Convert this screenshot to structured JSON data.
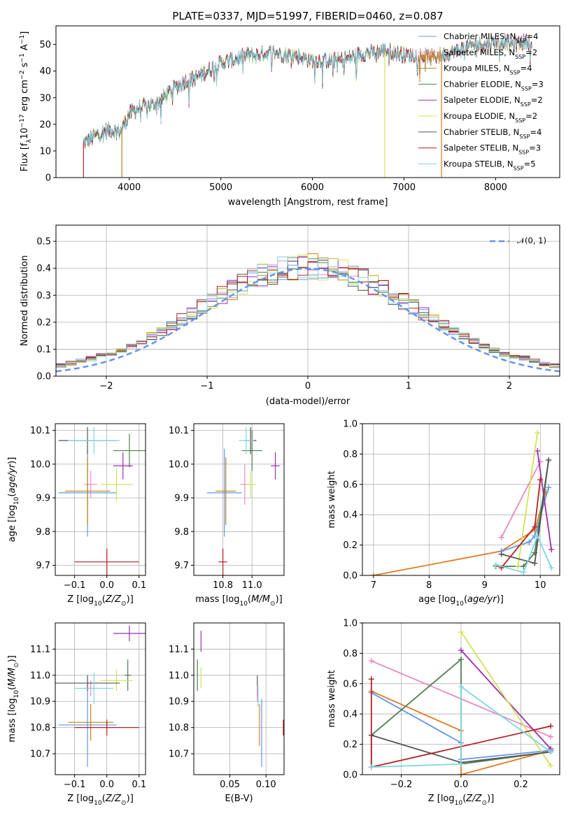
{
  "colors": {
    "Chabrier MILES": "#6495ed",
    "Salpeter MILES": "#e78ac3",
    "Kroupa MILES": "#b8860b",
    "Chabrier ELODIE": "#4f7f4f",
    "Salpeter ELODIE": "#9b2fae",
    "Kroupa ELODIE": "#d4e157",
    "Chabrier STELIB": "#555555",
    "Salpeter STELIB": "#b22222",
    "Kroupa STELIB": "#7fd6e0",
    "extra": "#e07b20",
    "normal_curve": "#6495ed"
  },
  "chart_data": [
    {
      "type": "line",
      "title": "PLATE=0337, MJD=51997, FIBERID=0460, z=0.087",
      "xlabel": "wavelength [Angstrom, rest frame]",
      "ylabel": "Flux [fλ10⁻¹⁷ erg cm⁻² s⁻¹ A⁻¹]",
      "xlim": [
        3200,
        8700
      ],
      "ylim": [
        0,
        57
      ],
      "xticks": [
        "4000",
        "5000",
        "6000",
        "7000",
        "8000"
      ],
      "yticks": [
        "0",
        "10",
        "20",
        "30",
        "40",
        "50"
      ],
      "legend": [
        "Chabrier MILES, N_SSP=4",
        "Salpeter MILES, N_SSP=2",
        "Kroupa MILES, N_SSP=4",
        "Chabrier ELODIE, N_SSP=3",
        "Salpeter ELODIE, N_SSP=2",
        "Kroupa ELODIE, N_SSP=2",
        "Chabrier STELIB, N_SSP=4",
        "Salpeter STELIB, N_SSP=3",
        "Kroupa STELIB, N_SSP=5"
      ],
      "spectrum_anchors": {
        "x": [
          3500,
          3600,
          3700,
          3800,
          3900,
          4000,
          4100,
          4200,
          4300,
          4400,
          4500,
          4600,
          4700,
          4800,
          4900,
          5000,
          5100,
          5200,
          5300,
          5400,
          5500,
          5600,
          5700,
          5800,
          5900,
          6000,
          6100,
          6200,
          6300,
          6400,
          6500,
          6600,
          6700,
          6800,
          6900,
          7000,
          7100,
          7200,
          7300,
          7400,
          7500,
          7600,
          7700,
          7800,
          7900,
          8000,
          8100,
          8200,
          8300,
          8400
        ],
        "y": [
          13,
          15,
          17,
          18,
          17,
          24,
          26,
          27,
          28,
          31,
          34,
          36,
          37,
          39,
          41,
          43,
          44,
          45,
          46,
          46,
          47,
          47,
          46,
          46,
          45,
          44,
          44,
          44,
          44,
          45,
          46,
          47,
          47,
          48,
          47,
          46,
          46,
          46,
          45,
          46,
          47,
          48,
          49,
          50,
          50,
          51,
          51,
          50,
          51,
          51
        ]
      },
      "drop_lines": [
        {
          "x": 3500,
          "model": "Salpeter STELIB"
        },
        {
          "x": 3920,
          "model": "Kroupa MILES"
        },
        {
          "x": 6790,
          "model": "Kroupa ELODIE"
        },
        {
          "x": 7410,
          "model": "extra"
        }
      ]
    },
    {
      "type": "area",
      "xlabel": "(data-model)/error",
      "ylabel": "Normed distribution",
      "xlim": [
        -2.5,
        2.5
      ],
      "ylim": [
        0,
        0.56
      ],
      "xticks": [
        "−2",
        "−1",
        "0",
        "1",
        "2"
      ],
      "yticks": [
        "0.0",
        "0.1",
        "0.2",
        "0.3",
        "0.4",
        "0.5"
      ],
      "legend": [
        "𝒩(0, 1)"
      ],
      "bin_width": 0.1,
      "bin_start": -2.5,
      "series_bins": 50
    },
    {
      "type": "scatter",
      "xlabel": "Z [log10(Z/Z⊙)]",
      "ylabel": "age  [log10(age/yr)]",
      "xlim": [
        -0.16,
        0.12
      ],
      "ylim": [
        9.67,
        10.12
      ],
      "xticks": [
        "−0.1",
        "0.0",
        "0.1"
      ],
      "yticks": [
        "9.7",
        "9.8",
        "9.9",
        "10.0",
        "10.1"
      ],
      "points": [
        {
          "model": "Chabrier MILES",
          "x": -0.06,
          "y": 9.915,
          "xerr": 0.09,
          "yerr": 0.13
        },
        {
          "model": "Salpeter MILES",
          "x": -0.05,
          "y": 9.94,
          "xerr": 0.02,
          "yerr": 0.04
        },
        {
          "model": "Kroupa MILES",
          "x": -0.06,
          "y": 9.92,
          "xerr": 0.07,
          "yerr": 0.1
        },
        {
          "model": "Chabrier ELODIE",
          "x": 0.07,
          "y": 10.04,
          "xerr": 0.05,
          "yerr": 0.05
        },
        {
          "model": "Salpeter ELODIE",
          "x": 0.05,
          "y": 9.995,
          "xerr": 0.03,
          "yerr": 0.04
        },
        {
          "model": "Kroupa ELODIE",
          "x": 0.03,
          "y": 9.94,
          "xerr": 0.05,
          "yerr": 0.05
        },
        {
          "model": "Chabrier STELIB",
          "x": -0.06,
          "y": 10.07,
          "xerr": 0.09,
          "yerr": 0.04
        },
        {
          "model": "Salpeter STELIB",
          "x": 0.0,
          "y": 9.71,
          "xerr": 0.1,
          "yerr": 0.04
        },
        {
          "model": "Kroupa STELIB",
          "x": -0.04,
          "y": 10.07,
          "xerr": 0.08,
          "yerr": 0.04
        }
      ]
    },
    {
      "type": "scatter",
      "xlabel": "mass [log10(M/M⊙)]",
      "ylabel": "",
      "xlim": [
        10.6,
        11.22
      ],
      "ylim": [
        9.67,
        10.12
      ],
      "xticks": [
        "10.8",
        "11.0"
      ],
      "yticks": [
        "9.7",
        "9.8",
        "9.9",
        "10.0",
        "10.1"
      ],
      "points": [
        {
          "model": "Chabrier MILES",
          "x": 10.81,
          "y": 9.915,
          "xerr": 0.12,
          "yerr": 0.13
        },
        {
          "model": "Salpeter MILES",
          "x": 10.95,
          "y": 9.94,
          "xerr": 0.03,
          "yerr": 0.06
        },
        {
          "model": "Kroupa MILES",
          "x": 10.82,
          "y": 9.92,
          "xerr": 0.07,
          "yerr": 0.1
        },
        {
          "model": "Chabrier ELODIE",
          "x": 11.0,
          "y": 10.04,
          "xerr": 0.07,
          "yerr": 0.06
        },
        {
          "model": "Salpeter ELODIE",
          "x": 11.16,
          "y": 9.995,
          "xerr": 0.03,
          "yerr": 0.04
        },
        {
          "model": "Kroupa ELODIE",
          "x": 10.99,
          "y": 9.94,
          "xerr": 0.04,
          "yerr": 0.04
        },
        {
          "model": "Chabrier STELIB",
          "x": 10.99,
          "y": 10.07,
          "xerr": 0.04,
          "yerr": 0.04
        },
        {
          "model": "Salpeter STELIB",
          "x": 10.8,
          "y": 9.71,
          "xerr": 0.03,
          "yerr": 0.04
        },
        {
          "model": "Kroupa STELIB",
          "x": 10.96,
          "y": 10.07,
          "xerr": 0.05,
          "yerr": 0.04
        }
      ]
    },
    {
      "type": "line",
      "xlabel": "age  [log10(age/yr)]",
      "ylabel": "mass weight",
      "xlim": [
        6.8,
        10.35
      ],
      "ylim": [
        0,
        1
      ],
      "xticks": [
        "7",
        "8",
        "9",
        "10"
      ],
      "yticks": [
        "0.0",
        "0.2",
        "0.4",
        "0.6",
        "0.8",
        "1.0"
      ],
      "series": [
        {
          "model": "extra",
          "x": [
            7.0,
            9.3,
            9.9,
            10.1
          ],
          "y": [
            0.0,
            0.16,
            0.3,
            0.55
          ]
        },
        {
          "model": "Chabrier MILES",
          "x": [
            9.3,
            9.8,
            9.9,
            10.15
          ],
          "y": [
            0.16,
            0.22,
            0.26,
            0.58
          ]
        },
        {
          "model": "Salpeter MILES",
          "x": [
            9.3,
            10.0
          ],
          "y": [
            0.25,
            0.75
          ]
        },
        {
          "model": "Chabrier ELODIE",
          "x": [
            9.2,
            9.7,
            9.9,
            10.15
          ],
          "y": [
            0.06,
            0.06,
            0.15,
            0.76
          ]
        },
        {
          "model": "Salpeter ELODIE",
          "x": [
            9.95,
            10.2
          ],
          "y": [
            0.82,
            0.17
          ]
        },
        {
          "model": "Kroupa ELODIE",
          "x": [
            9.6,
            9.95
          ],
          "y": [
            0.06,
            0.94
          ]
        },
        {
          "model": "Chabrier STELIB",
          "x": [
            9.3,
            9.9,
            10.15
          ],
          "y": [
            0.14,
            0.08,
            0.76
          ]
        },
        {
          "model": "Salpeter STELIB",
          "x": [
            9.3,
            9.9,
            10.0
          ],
          "y": [
            0.05,
            0.32,
            0.63
          ]
        },
        {
          "model": "Kroupa STELIB",
          "x": [
            9.2,
            9.7,
            9.95,
            10.2
          ],
          "y": [
            0.07,
            0.02,
            0.26,
            0.05
          ]
        }
      ]
    },
    {
      "type": "scatter",
      "xlabel": "Z [log10(Z/Z⊙)]",
      "ylabel": "mass [log10(M/M⊙)]",
      "xlim": [
        -0.16,
        0.12
      ],
      "ylim": [
        10.62,
        11.2
      ],
      "xticks": [
        "−0.1",
        "0.0",
        "0.1"
      ],
      "yticks": [
        "10.7",
        "10.8",
        "10.9",
        "11.0",
        "11.1"
      ],
      "points": [
        {
          "model": "Chabrier MILES",
          "x": -0.06,
          "y": 10.81,
          "xerr": 0.09,
          "yerr": 0.16
        },
        {
          "model": "Salpeter MILES",
          "x": -0.05,
          "y": 10.95,
          "xerr": 0.02,
          "yerr": 0.03
        },
        {
          "model": "Kroupa MILES",
          "x": -0.05,
          "y": 10.82,
          "xerr": 0.07,
          "yerr": 0.07
        },
        {
          "model": "Chabrier ELODIE",
          "x": 0.065,
          "y": 11.0,
          "xerr": 0.01,
          "yerr": 0.06
        },
        {
          "model": "Salpeter ELODIE",
          "x": 0.07,
          "y": 11.16,
          "xerr": 0.05,
          "yerr": 0.03
        },
        {
          "model": "Kroupa ELODIE",
          "x": 0.03,
          "y": 10.98,
          "xerr": 0.05,
          "yerr": 0.04
        },
        {
          "model": "Chabrier STELIB",
          "x": -0.06,
          "y": 10.97,
          "xerr": 0.1,
          "yerr": 0.03
        },
        {
          "model": "Salpeter STELIB",
          "x": 0.0,
          "y": 10.8,
          "xerr": 0.1,
          "yerr": 0.03
        },
        {
          "model": "Kroupa STELIB",
          "x": -0.04,
          "y": 10.95,
          "xerr": 0.06,
          "yerr": 0.06
        }
      ]
    },
    {
      "type": "scatter",
      "xlabel": "E(B-V)",
      "ylabel": "",
      "xlim": [
        0.0,
        0.125
      ],
      "ylim": [
        10.62,
        11.2
      ],
      "xticks": [
        "0.05",
        "0.10"
      ],
      "yticks": [
        "10.7",
        "10.8",
        "10.9",
        "11.0",
        "11.1"
      ],
      "points": [
        {
          "model": "Chabrier ELODIE",
          "x": 0.005,
          "y": 11.0,
          "yerr": 0.06
        },
        {
          "model": "Salpeter ELODIE",
          "x": 0.01,
          "y": 11.13,
          "yerr": 0.04
        },
        {
          "model": "Kroupa ELODIE",
          "x": 0.01,
          "y": 10.99,
          "yerr": 0.04
        },
        {
          "model": "Chabrier STELIB",
          "x": 0.088,
          "y": 10.96,
          "yerr": 0.04
        },
        {
          "model": "Kroupa STELIB",
          "x": 0.089,
          "y": 10.92,
          "yerr": 0.04
        },
        {
          "model": "Salpeter MILES",
          "x": 0.088,
          "y": 10.93,
          "yerr": 0.03
        },
        {
          "model": "extra",
          "x": 0.091,
          "y": 10.81,
          "yerr": 0.08
        },
        {
          "model": "Chabrier MILES",
          "x": 0.094,
          "y": 10.78,
          "yerr": 0.13
        },
        {
          "model": "Salpeter STELIB",
          "x": 0.124,
          "y": 10.8,
          "yerr": 0.03
        }
      ]
    },
    {
      "type": "line",
      "xlabel": "Z [log10(Z/Z⊙)]",
      "ylabel": "mass weight",
      "xlim": [
        -0.33,
        0.33
      ],
      "ylim": [
        0,
        1
      ],
      "xticks": [
        "−0.2",
        "0.0",
        "0.2"
      ],
      "yticks": [
        "0.0",
        "0.2",
        "0.4",
        "0.6",
        "0.8",
        "1.0"
      ],
      "series": [
        {
          "model": "extra",
          "x": [
            -0.3,
            0.0,
            0.0,
            0.3
          ],
          "y": [
            0.55,
            0.29,
            0.0,
            0.16
          ]
        },
        {
          "model": "Chabrier MILES",
          "x": [
            -0.3,
            0.0,
            0.0,
            0.3
          ],
          "y": [
            0.54,
            0.21,
            0.1,
            0.16
          ]
        },
        {
          "model": "Salpeter MILES",
          "x": [
            -0.3,
            0.3
          ],
          "y": [
            0.75,
            0.25
          ]
        },
        {
          "model": "Chabrier ELODIE",
          "x": [
            -0.3,
            -0.3,
            0.0,
            0.0,
            0.3
          ],
          "y": [
            0.05,
            0.26,
            0.76,
            0.07,
            0.15
          ]
        },
        {
          "model": "Salpeter ELODIE",
          "x": [
            0.0,
            0.3
          ],
          "y": [
            0.82,
            0.17
          ]
        },
        {
          "model": "Kroupa ELODIE",
          "x": [
            0.0,
            0.3
          ],
          "y": [
            0.94,
            0.06
          ]
        },
        {
          "model": "Chabrier STELIB",
          "x": [
            -0.3,
            0.0,
            0.3
          ],
          "y": [
            0.26,
            0.08,
            0.15
          ]
        },
        {
          "model": "Salpeter STELIB",
          "x": [
            -0.3,
            -0.3,
            0.3
          ],
          "y": [
            0.63,
            0.05,
            0.32
          ]
        },
        {
          "model": "Kroupa STELIB",
          "x": [
            -0.3,
            0.0,
            0.0,
            0.3
          ],
          "y": [
            0.05,
            0.07,
            0.58,
            0.15
          ]
        }
      ]
    }
  ]
}
